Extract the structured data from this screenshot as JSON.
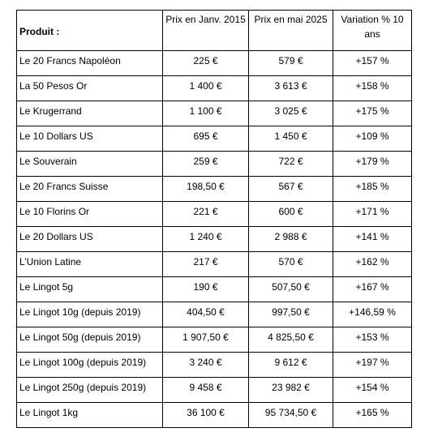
{
  "table": {
    "headers": [
      "Produit :",
      "Prix en Janv. 2015",
      "Prix en mai 2025",
      "Variation % 10 ans"
    ],
    "rows": [
      [
        "Le 20 Francs Napoléon",
        "225 €",
        "579 €",
        "+157 %"
      ],
      [
        "La 50 Pesos Or",
        "1 400 €",
        "3 613 €",
        "+158 %"
      ],
      [
        "Le Krugerrand",
        "1 100 €",
        "3 025 €",
        "+175 %"
      ],
      [
        "Le 10 Dollars US",
        "695 €",
        "1 450 €",
        "+109 %"
      ],
      [
        "Le Souverain",
        "259 €",
        "722 €",
        "+179 %"
      ],
      [
        "Le 20 Francs Suisse",
        "198,50 €",
        "567 €",
        "+185 %"
      ],
      [
        "Le 10 Florins Or",
        "221 €",
        "600 €",
        "+171 %"
      ],
      [
        "Le 20 Dollars US",
        "1 240 €",
        "2 988 €",
        "+141 %"
      ],
      [
        "L’Union Latine",
        "217 €",
        "570 €",
        "+162 %"
      ],
      [
        "Le Lingot 5g",
        "190 €",
        "507,50 €",
        "+167 %"
      ],
      [
        "Le Lingot 10g (depuis 2019)",
        "404,50 €",
        "997,50 €",
        "+146,59 %"
      ],
      [
        "Le Lingot 50g (depuis 2019)",
        "1 907,50 €",
        "4 825,50 €",
        "+153 %"
      ],
      [
        "Le Lingot 100g (depuis 2019)",
        "3 240 €",
        "9 612 €",
        "+197 %"
      ],
      [
        "Le Lingot 250g (depuis 2019)",
        "9 458 €",
        "23 982 €",
        "+154 %"
      ],
      [
        "Le Lingot 1kg",
        "36 100 €",
        "95 734,50 €",
        "+165 %"
      ]
    ]
  }
}
